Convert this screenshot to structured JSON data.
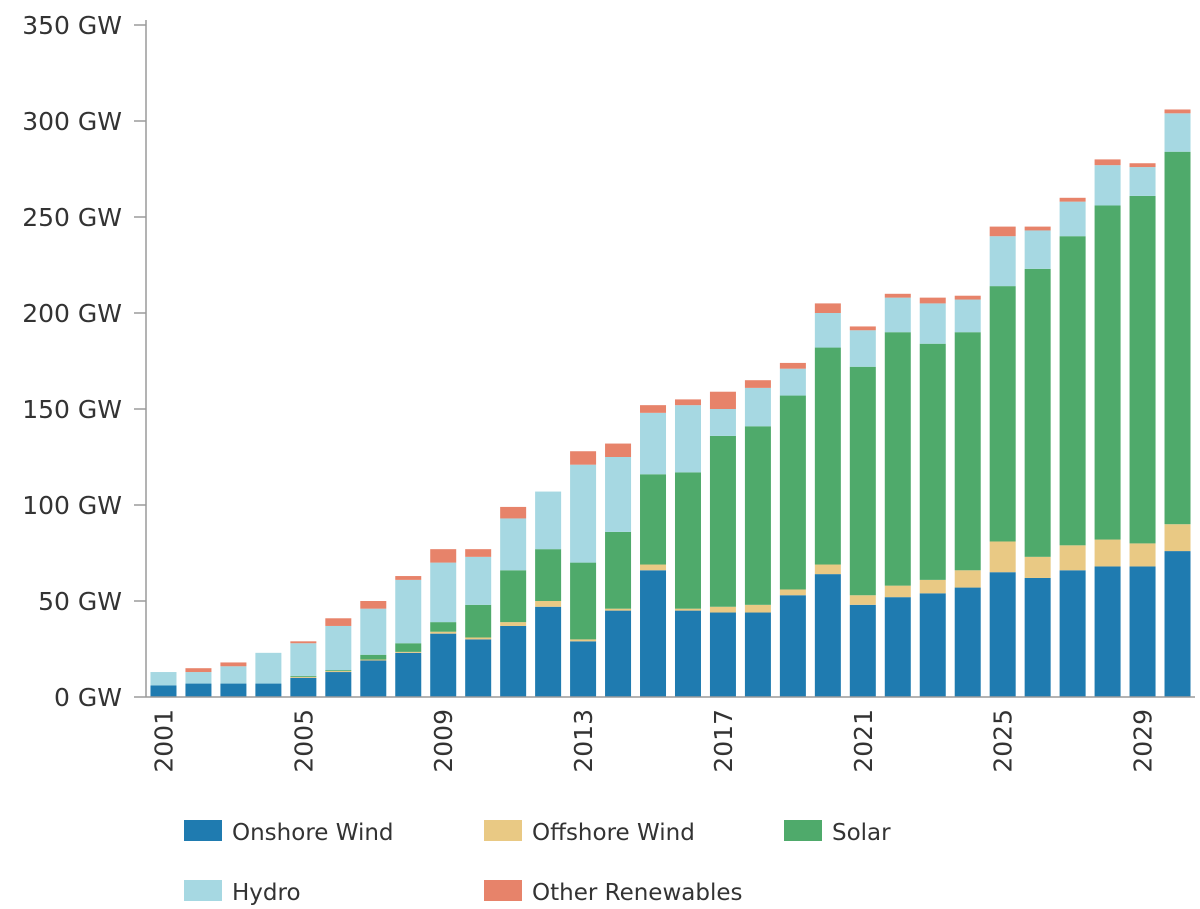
{
  "chart_data": {
    "type": "bar",
    "stacked": true,
    "title": "",
    "xlabel": "",
    "ylabel": "",
    "ylim": [
      0,
      350
    ],
    "y_ticks": [
      "0 GW",
      "50 GW",
      "100 GW",
      "150 GW",
      "200 GW",
      "250 GW",
      "300 GW",
      "350 GW"
    ],
    "x_tick_labels": [
      "2001",
      "2005",
      "2009",
      "2013",
      "2017",
      "2021",
      "2025",
      "2029"
    ],
    "categories": [
      "2001",
      "2002",
      "2003",
      "2004",
      "2005",
      "2006",
      "2007",
      "2008",
      "2009",
      "2010",
      "2011",
      "2012",
      "2013",
      "2014",
      "2015",
      "2016",
      "2017",
      "2018",
      "2019",
      "2020",
      "2021",
      "2022",
      "2023",
      "2024",
      "2025",
      "2026",
      "2027",
      "2028",
      "2029",
      "2030"
    ],
    "grid": false,
    "legend_position": "bottom",
    "series": [
      {
        "name": "Onshore Wind",
        "color": "#1f7bb0",
        "values": [
          6,
          7,
          7,
          7,
          10,
          13,
          19,
          23,
          33,
          30,
          37,
          47,
          29,
          45,
          66,
          45,
          44,
          44,
          53,
          64,
          48,
          52,
          54,
          57,
          65,
          62,
          66,
          68,
          68,
          76
        ]
      },
      {
        "name": "Offshore Wind",
        "color": "#e9c984",
        "values": [
          0,
          0,
          0,
          0,
          0.5,
          0.5,
          0.5,
          0.5,
          1,
          1,
          2,
          3,
          1,
          1,
          3,
          1,
          3,
          4,
          3,
          5,
          5,
          6,
          7,
          9,
          16,
          11,
          13,
          14,
          12,
          14
        ]
      },
      {
        "name": "Solar",
        "color": "#4faa6b",
        "values": [
          0,
          0,
          0,
          0,
          0.5,
          0.5,
          2.5,
          4.5,
          5,
          17,
          27,
          27,
          40,
          40,
          47,
          71,
          89,
          93,
          101,
          113,
          119,
          132,
          123,
          124,
          133,
          150,
          161,
          174,
          181,
          194
        ]
      },
      {
        "name": "Hydro",
        "color": "#a6d8e2",
        "values": [
          7,
          6,
          9,
          16,
          17,
          23,
          24,
          33,
          31,
          25,
          27,
          30,
          51,
          39,
          32,
          35,
          14,
          20,
          14,
          18,
          19,
          18,
          21,
          17,
          26,
          20,
          18,
          21,
          15,
          20
        ]
      },
      {
        "name": "Other Renewables",
        "color": "#e7836a",
        "values": [
          0,
          2,
          2,
          0,
          1,
          4,
          4,
          2,
          7,
          4,
          6,
          0,
          7,
          7,
          4,
          3,
          9,
          4,
          3,
          5,
          2,
          2,
          3,
          2,
          5,
          2,
          2,
          3,
          2,
          2
        ]
      }
    ]
  }
}
